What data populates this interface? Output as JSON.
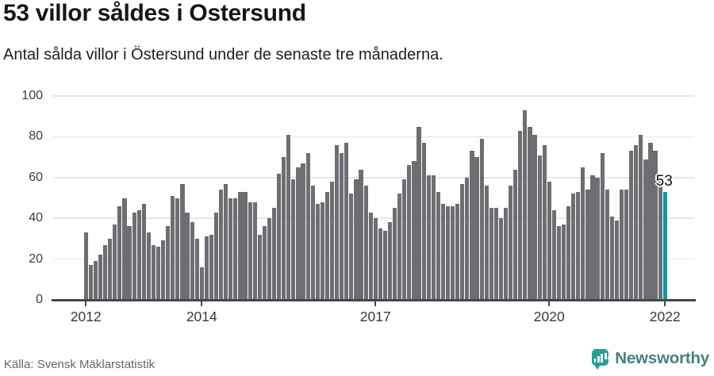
{
  "header": {
    "title": "53 villor såldes i Ostersund",
    "subtitle": "Antal sålda villor i Östersund under de senaste tre månaderna."
  },
  "chart_data": {
    "type": "bar",
    "title": "53 villor såldes i Ostersund",
    "x_start": "2012-01",
    "x_end": "2022-01",
    "x_unit": "month",
    "ylim": [
      0,
      100
    ],
    "grid": true,
    "yticks": [
      0,
      20,
      40,
      60,
      80,
      100
    ],
    "xticks": [
      {
        "label": "2012",
        "month_index": 0
      },
      {
        "label": "2014",
        "month_index": 24
      },
      {
        "label": "2017",
        "month_index": 60
      },
      {
        "label": "2020",
        "month_index": 96
      },
      {
        "label": "2022",
        "month_index": 120
      }
    ],
    "series": [
      {
        "name": "Sålda villor (rullande tre månader)",
        "values": [
          33,
          17,
          19,
          22,
          27,
          30,
          37,
          46,
          50,
          36,
          43,
          44,
          47,
          33,
          27,
          26,
          29,
          36,
          51,
          50,
          57,
          43,
          38,
          30,
          16,
          31,
          32,
          43,
          54,
          57,
          50,
          50,
          53,
          53,
          48,
          48,
          32,
          36,
          40,
          45,
          62,
          70,
          81,
          59,
          65,
          67,
          72,
          56,
          47,
          48,
          53,
          58,
          76,
          72,
          77,
          52,
          59,
          64,
          56,
          43,
          40,
          35,
          34,
          38,
          45,
          52,
          59,
          66,
          68,
          85,
          77,
          61,
          61,
          53,
          47,
          46,
          46,
          47,
          57,
          60,
          73,
          70,
          79,
          56,
          45,
          45,
          40,
          45,
          56,
          64,
          83,
          93,
          85,
          81,
          71,
          76,
          58,
          44,
          36,
          37,
          46,
          52,
          53,
          65,
          54,
          61,
          60,
          72,
          54,
          41,
          39,
          54,
          54,
          73,
          76,
          81,
          69,
          77,
          73,
          58,
          53
        ]
      }
    ],
    "highlight": {
      "index": 120,
      "value": 53,
      "label": "53"
    },
    "colors": {
      "bar": "#6d6e72",
      "highlight": "#0d9a9a",
      "grid": "#e6e6e6",
      "axis": "#44464a"
    },
    "legend": null
  },
  "footer": {
    "source": "Källa: Svensk Mäklarstatistik",
    "brand": "Newsworthy"
  }
}
